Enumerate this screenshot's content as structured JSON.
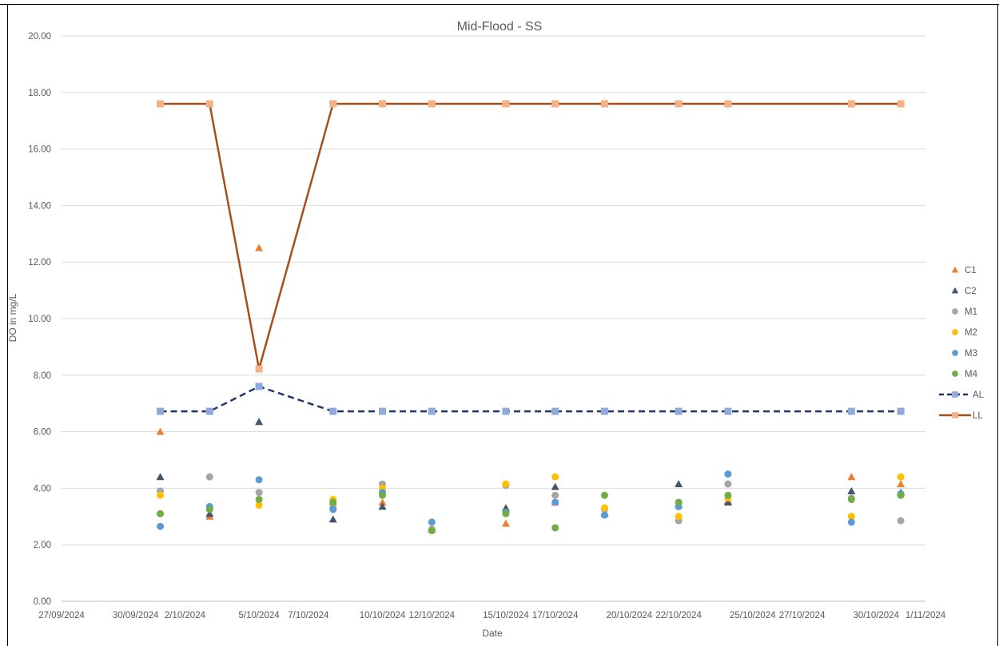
{
  "chart_data": {
    "type": "scatter",
    "title": "Mid-Flood - SS",
    "xlabel": "Date",
    "ylabel": "DO in mg/L",
    "ylim": [
      0,
      20
    ],
    "xlim": [
      "2024-09-27",
      "2024-11-01"
    ],
    "yticks": [
      "0.00",
      "2.00",
      "4.00",
      "6.00",
      "8.00",
      "10.00",
      "12.00",
      "14.00",
      "16.00",
      "18.00",
      "20.00"
    ],
    "xticks": [
      {
        "date": "2024-09-27",
        "label": "27/09/2024"
      },
      {
        "date": "2024-09-30",
        "label": "30/09/2024"
      },
      {
        "date": "2024-10-02",
        "label": "2/10/2024"
      },
      {
        "date": "2024-10-05",
        "label": "5/10/2024"
      },
      {
        "date": "2024-10-07",
        "label": "7/10/2024"
      },
      {
        "date": "2024-10-10",
        "label": "10/10/2024"
      },
      {
        "date": "2024-10-12",
        "label": "12/10/2024"
      },
      {
        "date": "2024-10-15",
        "label": "15/10/2024"
      },
      {
        "date": "2024-10-17",
        "label": "17/10/2024"
      },
      {
        "date": "2024-10-20",
        "label": "20/10/2024"
      },
      {
        "date": "2024-10-22",
        "label": "22/10/2024"
      },
      {
        "date": "2024-10-25",
        "label": "25/10/2024"
      },
      {
        "date": "2024-10-27",
        "label": "27/10/2024"
      },
      {
        "date": "2024-10-30",
        "label": "30/10/2024"
      },
      {
        "date": "2024-11-01",
        "label": "1/11/2024"
      }
    ],
    "gridlines": "horizontal",
    "legend_position": "right",
    "series": [
      {
        "name": "C1",
        "marker": "triangle",
        "color": "#ED7D31",
        "line": false,
        "points": [
          [
            "2024-10-01",
            6.0
          ],
          [
            "2024-10-03",
            3.0
          ],
          [
            "2024-10-05",
            12.5
          ],
          [
            "2024-10-08",
            3.5
          ],
          [
            "2024-10-10",
            3.5
          ],
          [
            "2024-10-12",
            2.55
          ],
          [
            "2024-10-15",
            2.75
          ],
          [
            "2024-10-17",
            3.5
          ],
          [
            "2024-10-19",
            3.15
          ],
          [
            "2024-10-22",
            3.4
          ],
          [
            "2024-10-24",
            3.55
          ],
          [
            "2024-10-29",
            4.4
          ],
          [
            "2024-10-31",
            4.15
          ]
        ]
      },
      {
        "name": "C2",
        "marker": "triangle",
        "color": "#44546A",
        "line": false,
        "points": [
          [
            "2024-10-01",
            4.4
          ],
          [
            "2024-10-03",
            3.1
          ],
          [
            "2024-10-05",
            6.35
          ],
          [
            "2024-10-08",
            2.9
          ],
          [
            "2024-10-10",
            3.35
          ],
          [
            "2024-10-12",
            2.55
          ],
          [
            "2024-10-15",
            3.3
          ],
          [
            "2024-10-17",
            4.05
          ],
          [
            "2024-10-19",
            3.1
          ],
          [
            "2024-10-22",
            4.15
          ],
          [
            "2024-10-24",
            3.5
          ],
          [
            "2024-10-29",
            3.9
          ],
          [
            "2024-10-31",
            3.85
          ]
        ]
      },
      {
        "name": "M1",
        "marker": "circle",
        "color": "#A5A5A5",
        "line": false,
        "points": [
          [
            "2024-10-01",
            3.9
          ],
          [
            "2024-10-03",
            4.4
          ],
          [
            "2024-10-05",
            3.85
          ],
          [
            "2024-10-08",
            3.3
          ],
          [
            "2024-10-10",
            4.15
          ],
          [
            "2024-10-12",
            2.55
          ],
          [
            "2024-10-15",
            4.1
          ],
          [
            "2024-10-17",
            3.75
          ],
          [
            "2024-10-19",
            3.25
          ],
          [
            "2024-10-22",
            2.85
          ],
          [
            "2024-10-24",
            4.15
          ],
          [
            "2024-10-29",
            3.65
          ],
          [
            "2024-10-31",
            2.85
          ]
        ]
      },
      {
        "name": "M2",
        "marker": "circle",
        "color": "#FFC000",
        "line": false,
        "points": [
          [
            "2024-10-01",
            3.75
          ],
          [
            "2024-10-03",
            3.25
          ],
          [
            "2024-10-05",
            3.4
          ],
          [
            "2024-10-08",
            3.6
          ],
          [
            "2024-10-10",
            4.0
          ],
          [
            "2024-10-12",
            2.5
          ],
          [
            "2024-10-15",
            4.15
          ],
          [
            "2024-10-17",
            4.4
          ],
          [
            "2024-10-19",
            3.3
          ],
          [
            "2024-10-22",
            3.0
          ],
          [
            "2024-10-24",
            3.65
          ],
          [
            "2024-10-29",
            3.0
          ],
          [
            "2024-10-31",
            4.4
          ]
        ]
      },
      {
        "name": "M3",
        "marker": "circle",
        "color": "#5B9BD5",
        "line": false,
        "points": [
          [
            "2024-10-01",
            2.65
          ],
          [
            "2024-10-03",
            3.35
          ],
          [
            "2024-10-05",
            4.3
          ],
          [
            "2024-10-08",
            3.25
          ],
          [
            "2024-10-10",
            3.85
          ],
          [
            "2024-10-12",
            2.8
          ],
          [
            "2024-10-15",
            3.15
          ],
          [
            "2024-10-17",
            3.5
          ],
          [
            "2024-10-19",
            3.05
          ],
          [
            "2024-10-22",
            3.35
          ],
          [
            "2024-10-24",
            4.5
          ],
          [
            "2024-10-29",
            2.8
          ],
          [
            "2024-10-31",
            3.8
          ]
        ]
      },
      {
        "name": "M4",
        "marker": "circle",
        "color": "#70AD47",
        "line": false,
        "points": [
          [
            "2024-10-01",
            3.1
          ],
          [
            "2024-10-03",
            3.25
          ],
          [
            "2024-10-05",
            3.6
          ],
          [
            "2024-10-08",
            3.5
          ],
          [
            "2024-10-10",
            3.75
          ],
          [
            "2024-10-12",
            2.5
          ],
          [
            "2024-10-15",
            3.1
          ],
          [
            "2024-10-17",
            2.6
          ],
          [
            "2024-10-19",
            3.75
          ],
          [
            "2024-10-22",
            3.5
          ],
          [
            "2024-10-24",
            3.75
          ],
          [
            "2024-10-29",
            3.6
          ],
          [
            "2024-10-31",
            3.75
          ]
        ]
      },
      {
        "name": "AL",
        "marker": "square",
        "color": "#8FAADC",
        "line_color": "#203864",
        "line": "dashed",
        "points": [
          [
            "2024-10-01",
            6.72
          ],
          [
            "2024-10-03",
            6.72
          ],
          [
            "2024-10-05",
            7.6
          ],
          [
            "2024-10-08",
            6.72
          ],
          [
            "2024-10-10",
            6.72
          ],
          [
            "2024-10-12",
            6.72
          ],
          [
            "2024-10-15",
            6.72
          ],
          [
            "2024-10-17",
            6.72
          ],
          [
            "2024-10-19",
            6.72
          ],
          [
            "2024-10-22",
            6.72
          ],
          [
            "2024-10-24",
            6.72
          ],
          [
            "2024-10-29",
            6.72
          ],
          [
            "2024-10-31",
            6.72
          ]
        ]
      },
      {
        "name": "LL",
        "marker": "square",
        "color": "#F4B183",
        "line_color": "#A5501A",
        "line": "solid",
        "points": [
          [
            "2024-10-01",
            17.6
          ],
          [
            "2024-10-03",
            17.6
          ],
          [
            "2024-10-05",
            8.22
          ],
          [
            "2024-10-08",
            17.6
          ],
          [
            "2024-10-10",
            17.6
          ],
          [
            "2024-10-12",
            17.6
          ],
          [
            "2024-10-15",
            17.6
          ],
          [
            "2024-10-17",
            17.6
          ],
          [
            "2024-10-19",
            17.6
          ],
          [
            "2024-10-22",
            17.6
          ],
          [
            "2024-10-24",
            17.6
          ],
          [
            "2024-10-29",
            17.6
          ],
          [
            "2024-10-31",
            17.6
          ]
        ]
      }
    ]
  }
}
